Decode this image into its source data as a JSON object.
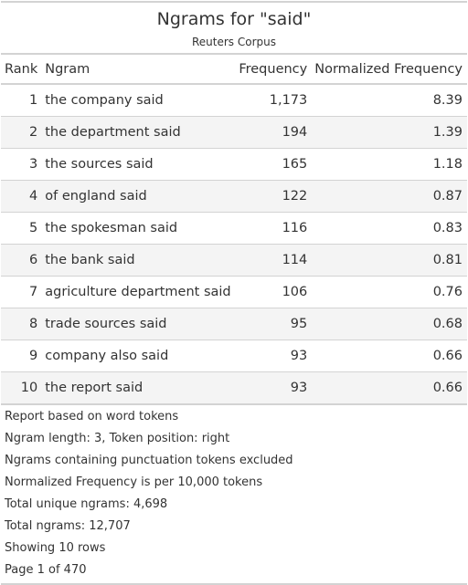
{
  "header": {
    "title": "Ngrams for \"said\"",
    "subtitle": "Reuters Corpus"
  },
  "table": {
    "columns": [
      "Rank",
      "Ngram",
      "Frequency",
      "Normalized Frequency"
    ],
    "rows": [
      {
        "rank": "1",
        "ngram": "the company said",
        "frequency": "1,173",
        "normalized": "8.39"
      },
      {
        "rank": "2",
        "ngram": "the department said",
        "frequency": "194",
        "normalized": "1.39"
      },
      {
        "rank": "3",
        "ngram": "the sources said",
        "frequency": "165",
        "normalized": "1.18"
      },
      {
        "rank": "4",
        "ngram": "of england said",
        "frequency": "122",
        "normalized": "0.87"
      },
      {
        "rank": "5",
        "ngram": "the spokesman said",
        "frequency": "116",
        "normalized": "0.83"
      },
      {
        "rank": "6",
        "ngram": "the bank said",
        "frequency": "114",
        "normalized": "0.81"
      },
      {
        "rank": "7",
        "ngram": "agriculture department said",
        "frequency": "106",
        "normalized": "0.76"
      },
      {
        "rank": "8",
        "ngram": "trade sources said",
        "frequency": "95",
        "normalized": "0.68"
      },
      {
        "rank": "9",
        "ngram": "company also said",
        "frequency": "93",
        "normalized": "0.66"
      },
      {
        "rank": "10",
        "ngram": "the report said",
        "frequency": "93",
        "normalized": "0.66"
      }
    ]
  },
  "footnotes": [
    "Report based on word tokens",
    "Ngram length: 3, Token position: right",
    "Ngrams containing punctuation tokens excluded",
    "Normalized Frequency is per 10,000 tokens",
    "Total unique ngrams: 4,698",
    "Total ngrams: 12,707",
    "Showing 10 rows",
    "Page 1 of 470"
  ],
  "colors": {
    "text": "#333333",
    "rule": "#d3d3d3",
    "stripe": "#f4f4f4"
  }
}
